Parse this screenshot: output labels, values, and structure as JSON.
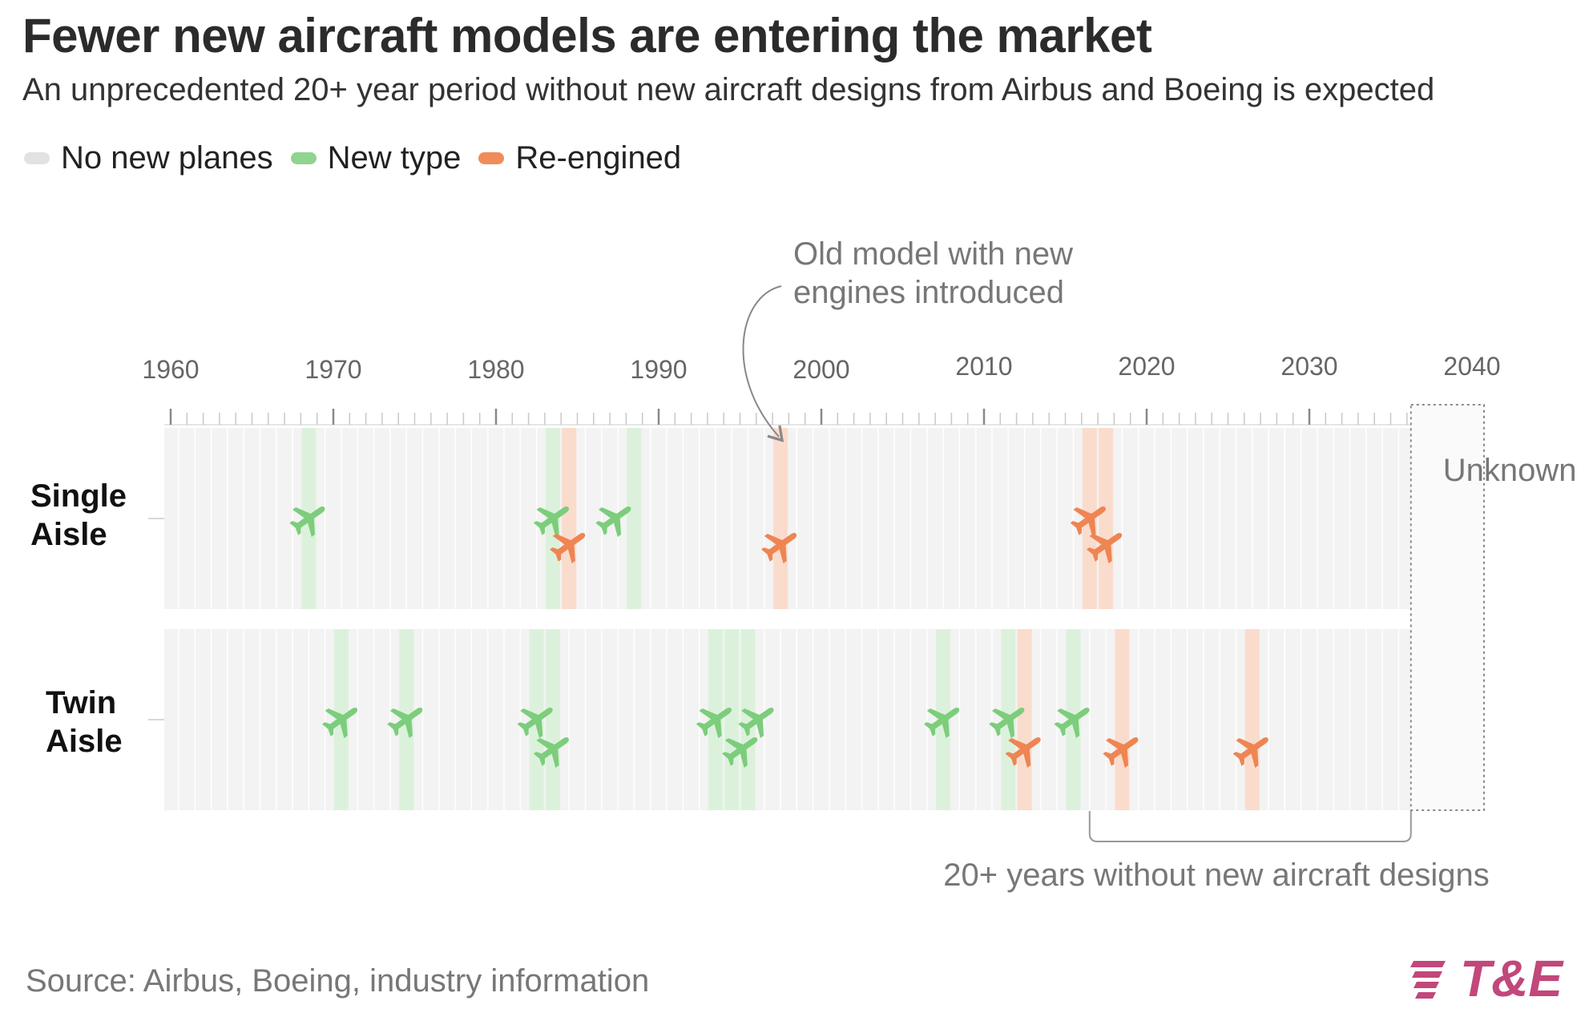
{
  "title": "Fewer new aircraft models are entering the market",
  "subtitle": "An unprecedented 20+ year period without new aircraft designs from Airbus and Boeing is expected",
  "legend": [
    {
      "label": "No new planes",
      "color": "#e2e2e2"
    },
    {
      "label": "New type",
      "color": "#8fd48f"
    },
    {
      "label": "Re-engined",
      "color": "#f08c5a"
    }
  ],
  "source": "Source: Airbus, Boeing, industry information",
  "logo_text": "T&E",
  "colors": {
    "new_type_band": "#dcf1dc",
    "new_type_icon": "#7ccd7c",
    "reengined_band": "#fadccd",
    "reengined_icon": "#ee8552",
    "no_new_band": "#f3f3f3",
    "axis": "#999999",
    "logo": "#c2477a"
  },
  "chart_data": {
    "type": "timeline",
    "x_ticks": [
      1960,
      1970,
      1980,
      1990,
      2000,
      2010,
      2020,
      2030,
      2040
    ],
    "xlim": [
      1960,
      2040
    ],
    "rows": [
      {
        "label_lines": [
          "Single",
          "Aisle"
        ],
        "events": [
          {
            "year": 1968,
            "kind": "new"
          },
          {
            "year": 1983,
            "kind": "new"
          },
          {
            "year": 1984,
            "kind": "reengined"
          },
          {
            "year": 1988,
            "kind": "new"
          },
          {
            "year": 1997,
            "kind": "reengined"
          },
          {
            "year": 2016,
            "kind": "reengined"
          },
          {
            "year": 2017,
            "kind": "reengined"
          }
        ]
      },
      {
        "label_lines": [
          "Twin",
          "Aisle"
        ],
        "events": [
          {
            "year": 1970,
            "kind": "new"
          },
          {
            "year": 1974,
            "kind": "new"
          },
          {
            "year": 1982,
            "kind": "new"
          },
          {
            "year": 1983,
            "kind": "new"
          },
          {
            "year": 1993,
            "kind": "new"
          },
          {
            "year": 1994,
            "kind": "new"
          },
          {
            "year": 1995,
            "kind": "new"
          },
          {
            "year": 2007,
            "kind": "new"
          },
          {
            "year": 2011,
            "kind": "new"
          },
          {
            "year": 2012,
            "kind": "reengined"
          },
          {
            "year": 2015,
            "kind": "new"
          },
          {
            "year": 2018,
            "kind": "reengined"
          },
          {
            "year": 2026,
            "kind": "reengined"
          }
        ]
      }
    ],
    "unknown_period": {
      "from": 2036,
      "to": 2040,
      "label": "Unknown"
    },
    "annotations": [
      {
        "text_lines": [
          "Old model with new",
          "engines introduced"
        ],
        "year": 1997
      },
      {
        "text": "20+ years without new aircraft designs",
        "from": 2016,
        "to": 2036
      }
    ]
  }
}
